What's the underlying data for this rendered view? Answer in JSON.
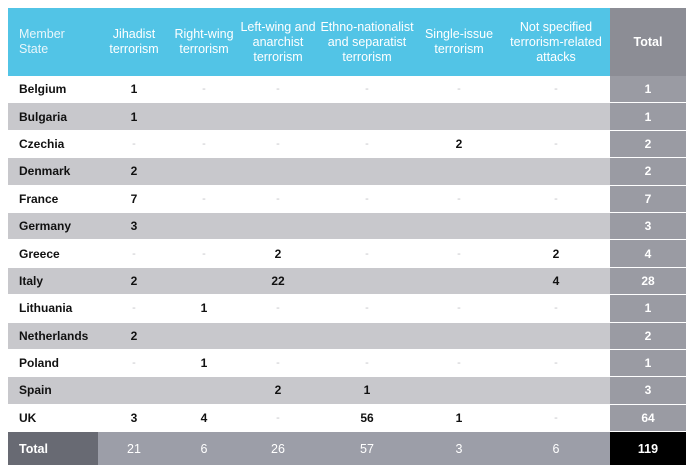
{
  "headers": [
    "Member State",
    "Jihadist terrorism",
    "Right-wing terrorism",
    "Left-wing and anarchist terrorism",
    "Ethno-nationalist and separatist terrorism",
    "Single-issue terrorism",
    "Not specified terrorism-related attacks",
    "Total"
  ],
  "rows": [
    {
      "state": "Belgium",
      "cells": [
        "1",
        "-",
        "-",
        "-",
        "-",
        "-"
      ],
      "total": "1"
    },
    {
      "state": "Bulgaria",
      "cells": [
        "1",
        "",
        "",
        "",
        "",
        ""
      ],
      "total": "1"
    },
    {
      "state": "Czechia",
      "cells": [
        "-",
        "-",
        "-",
        "-",
        "2",
        "-"
      ],
      "total": "2"
    },
    {
      "state": "Denmark",
      "cells": [
        "2",
        "",
        "",
        "",
        "",
        ""
      ],
      "total": "2"
    },
    {
      "state": "France",
      "cells": [
        "7",
        "-",
        "-",
        "-",
        "-",
        "-"
      ],
      "total": "7"
    },
    {
      "state": "Germany",
      "cells": [
        "3",
        "",
        "",
        "",
        "",
        ""
      ],
      "total": "3"
    },
    {
      "state": "Greece",
      "cells": [
        "-",
        "-",
        "2",
        "-",
        "-",
        "2"
      ],
      "total": "4"
    },
    {
      "state": "Italy",
      "cells": [
        "2",
        "",
        "22",
        "",
        "",
        "4"
      ],
      "total": "28"
    },
    {
      "state": "Lithuania",
      "cells": [
        "-",
        "1",
        "-",
        "-",
        "-",
        "-"
      ],
      "total": "1"
    },
    {
      "state": "Netherlands",
      "cells": [
        "2",
        "",
        "",
        "",
        "",
        ""
      ],
      "total": "2"
    },
    {
      "state": "Poland",
      "cells": [
        "-",
        "1",
        "-",
        "-",
        "-",
        "-"
      ],
      "total": "1"
    },
    {
      "state": "Spain",
      "cells": [
        "",
        "",
        "2",
        "1",
        "",
        ""
      ],
      "total": "3"
    },
    {
      "state": "UK",
      "cells": [
        "3",
        "4",
        "-",
        "56",
        "1",
        "-"
      ],
      "total": "64"
    }
  ],
  "totals": {
    "label": "Total",
    "cells": [
      "21",
      "6",
      "26",
      "57",
      "3",
      "6"
    ],
    "grand": "119"
  },
  "colors": {
    "header": "#52c4e6",
    "total_column": "#9a9ba3",
    "stripe": "#c8c8cc",
    "footer": "#9c9ea8",
    "grand_total": "#000000"
  }
}
